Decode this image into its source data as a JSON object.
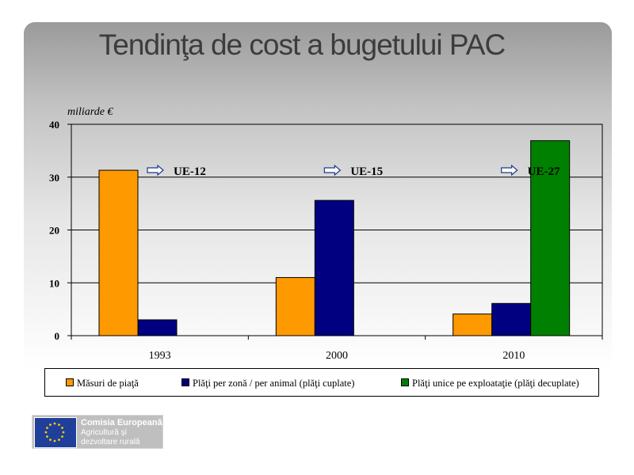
{
  "slide": {
    "title": "Tendinţa de cost a bugetului PAC"
  },
  "chart_data": {
    "type": "bar",
    "ylabel": "miliarde €",
    "ylim": [
      0,
      40
    ],
    "yticks": [
      0,
      10,
      20,
      30,
      40
    ],
    "grid": true,
    "categories": [
      "1993",
      "2000",
      "2010"
    ],
    "series": [
      {
        "name": "Măsuri de piaţă",
        "color": "#ff9900",
        "values": [
          31.3,
          11,
          4.1
        ]
      },
      {
        "name": "Plăţi per zonă / per animal (plăţi cuplate)",
        "color": "#000080",
        "values": [
          3,
          25.6,
          6.1
        ]
      },
      {
        "name": "Plăţi unice pe exploataţie (plăţi decuplate)",
        "color": "#008000",
        "values": [
          null,
          null,
          36.9
        ]
      }
    ],
    "annotations": [
      "UE-12",
      "UE-15",
      "UE-27"
    ],
    "legend_position": "bottom"
  },
  "logo": {
    "name": "Comisia Europeană",
    "sub1": "Agricultură şi",
    "sub2": "dezvoltare rurală",
    "flag_color": "#1f3f9a",
    "star_color": "#ffcc00"
  }
}
